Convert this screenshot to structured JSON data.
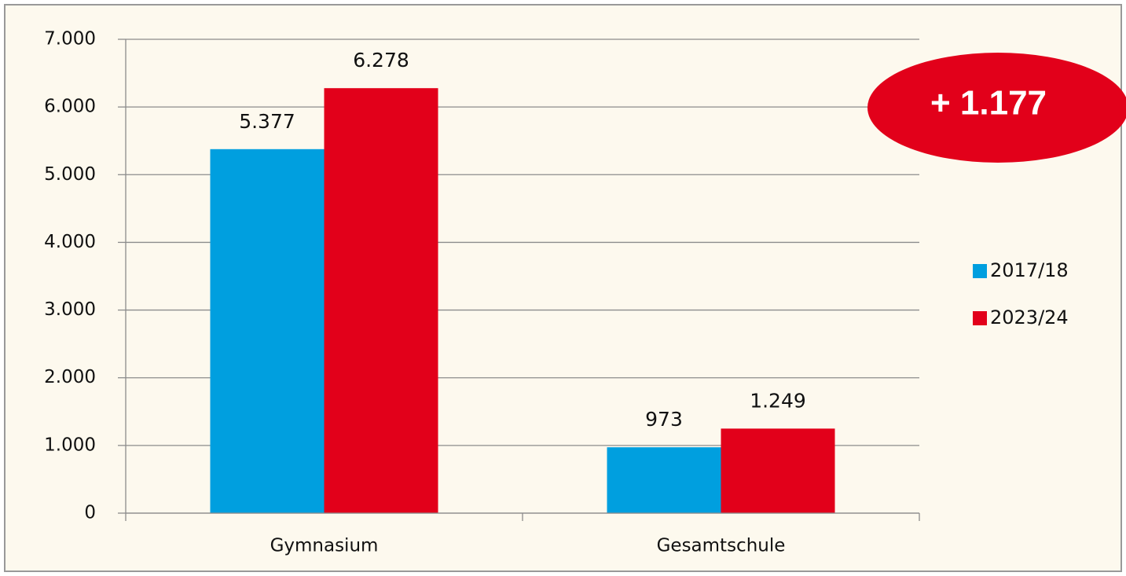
{
  "chart_data": {
    "type": "bar",
    "categories": [
      "Gymnasium",
      "Gesamtschule"
    ],
    "series": [
      {
        "name": "2017/18",
        "color": "#009fdf",
        "values": [
          5377,
          973
        ],
        "value_labels": [
          "5.377",
          "973"
        ]
      },
      {
        "name": "2023/24",
        "color": "#e2001a",
        "values": [
          6278,
          1249
        ],
        "value_labels": [
          "6.278",
          "1.249"
        ]
      }
    ],
    "ylim": [
      0,
      7000
    ],
    "yticks": [
      0,
      {
        "value": 1000,
        "label": "1.000"
      },
      {
        "value": 2000,
        "label": "2.000"
      },
      {
        "value": 3000,
        "label": "3.000"
      },
      {
        "value": 4000,
        "label": "4.000"
      },
      {
        "value": 5000,
        "label": "5.000"
      },
      {
        "value": 6000,
        "label": "6.000"
      },
      {
        "value": 7000,
        "label": "7.000"
      }
    ],
    "grid": true,
    "legend": "right",
    "annotation": "+ 1.177",
    "annotation_color": "#e2001a"
  }
}
